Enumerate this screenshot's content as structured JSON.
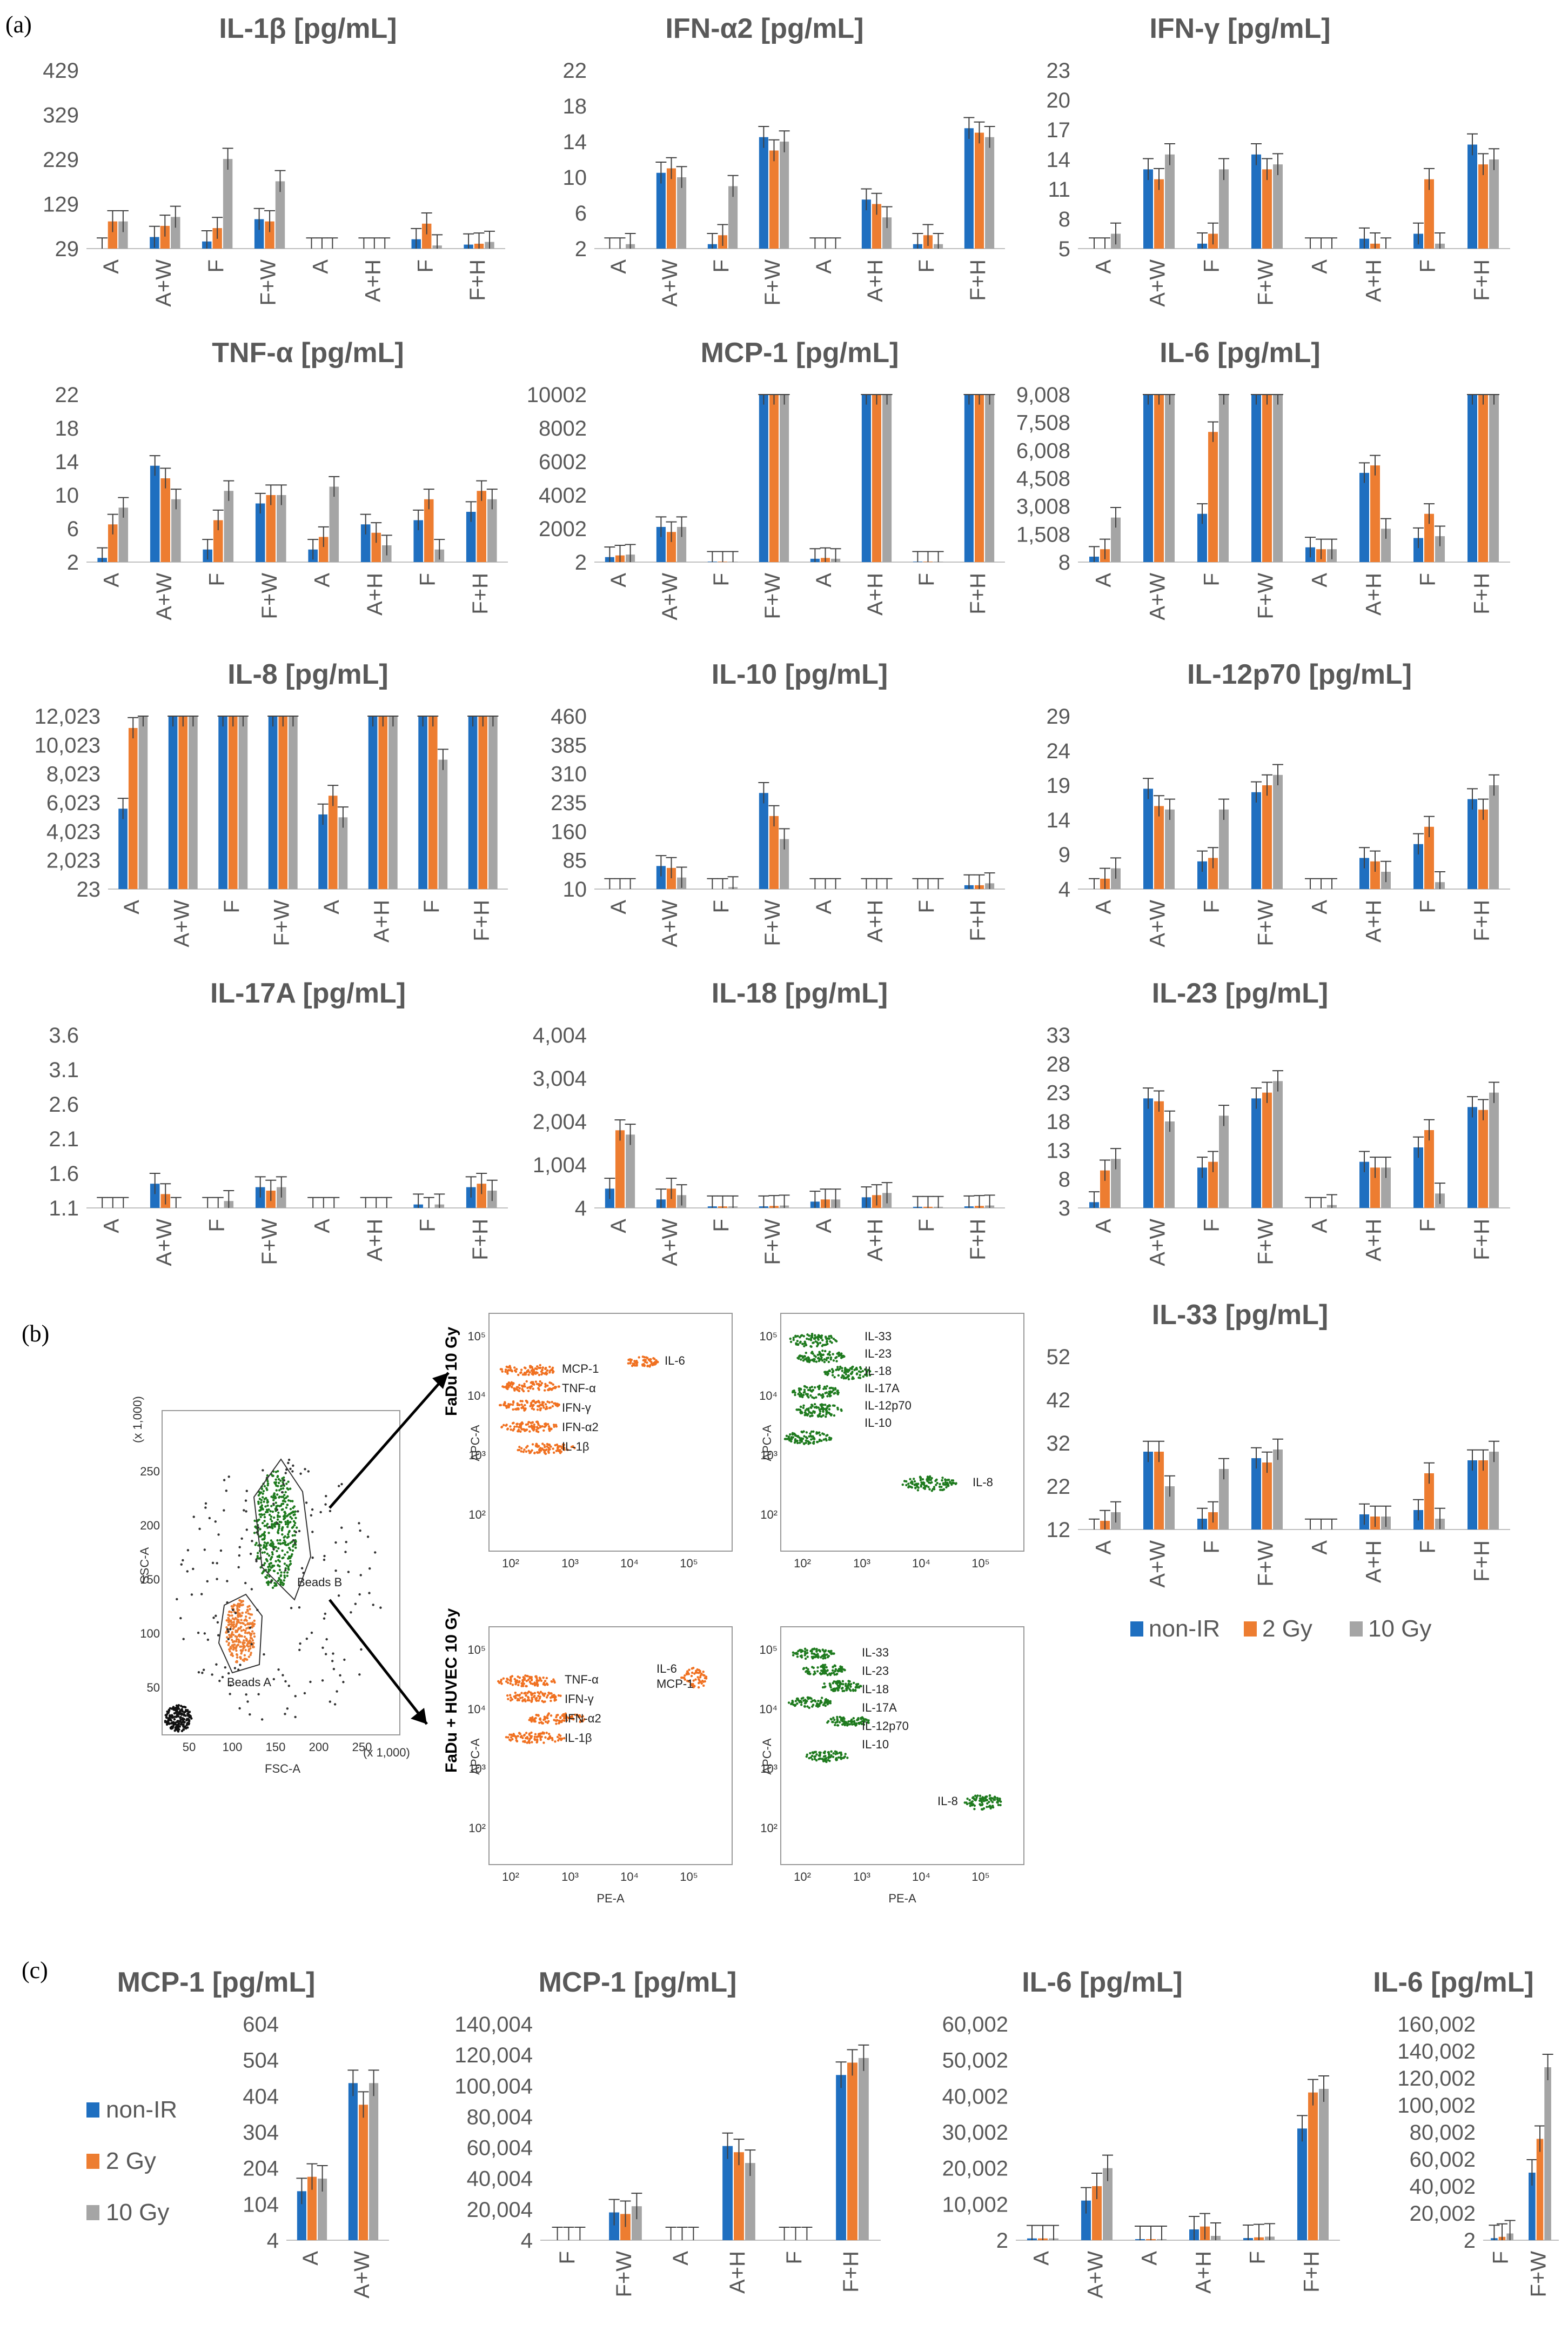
{
  "panels": {
    "a": "(a)",
    "b": "(b)",
    "c": "(c)"
  },
  "colors": {
    "non_ir": "#1f6fc0",
    "gy2": "#ed7d31",
    "gy10": "#a5a5a5"
  },
  "legend": {
    "items": [
      "non-IR",
      "2 Gy",
      "10 Gy"
    ]
  },
  "chart_data": [
    {
      "id": "il1b",
      "type": "bar",
      "title": "IL-1β [pg/mL]",
      "yticks": [
        "29",
        "129",
        "229",
        "329",
        "429"
      ],
      "ylim": [
        29,
        429
      ],
      "categories": [
        "A",
        "A+W",
        "F",
        "F+W",
        "A",
        "A+H",
        "F",
        "F+H"
      ],
      "series": [
        {
          "name": "non-IR",
          "values": [
            29,
            55,
            45,
            95,
            29,
            29,
            50,
            38
          ]
        },
        {
          "name": "2 Gy",
          "values": [
            90,
            80,
            75,
            90,
            29,
            29,
            85,
            40
          ]
        },
        {
          "name": "10 Gy",
          "values": [
            90,
            100,
            230,
            180,
            29,
            29,
            36,
            44
          ]
        }
      ]
    },
    {
      "id": "ifna2",
      "type": "bar",
      "title": "IFN-α2 [pg/mL]",
      "yticks": [
        "2",
        "6",
        "10",
        "14",
        "18",
        "22"
      ],
      "ylim": [
        2,
        22
      ],
      "categories": [
        "A",
        "A+W",
        "F",
        "F+W",
        "A",
        "A+H",
        "F",
        "F+H"
      ],
      "series": [
        {
          "name": "non-IR",
          "values": [
            2,
            10.5,
            2.5,
            14.5,
            2,
            7.5,
            2.5,
            15.5
          ]
        },
        {
          "name": "2 Gy",
          "values": [
            2,
            11,
            3.5,
            13,
            2,
            7,
            3.5,
            15
          ]
        },
        {
          "name": "10 Gy",
          "values": [
            2.5,
            10,
            9,
            14,
            2,
            5.5,
            2.5,
            14.5
          ]
        }
      ]
    },
    {
      "id": "ifng",
      "type": "bar",
      "title": "IFN-γ [pg/mL]",
      "yticks": [
        "5",
        "8",
        "11",
        "14",
        "17",
        "20",
        "23"
      ],
      "ylim": [
        5,
        23
      ],
      "categories": [
        "A",
        "A+W",
        "F",
        "F+W",
        "A",
        "A+H",
        "F",
        "F+H"
      ],
      "series": [
        {
          "name": "non-IR",
          "values": [
            5,
            13,
            5.5,
            14.5,
            5,
            6,
            6.5,
            15.5
          ]
        },
        {
          "name": "2 Gy",
          "values": [
            5,
            12,
            6.5,
            13,
            5,
            5.5,
            12,
            13.5
          ]
        },
        {
          "name": "10 Gy",
          "values": [
            6.5,
            14.5,
            13,
            13.5,
            5,
            5,
            5.5,
            14
          ]
        }
      ]
    },
    {
      "id": "tnfa",
      "type": "bar",
      "title": "TNF-α [pg/mL]",
      "yticks": [
        "2",
        "6",
        "10",
        "14",
        "18",
        "22"
      ],
      "ylim": [
        2,
        22
      ],
      "categories": [
        "A",
        "A+W",
        "F",
        "F+W",
        "A",
        "A+H",
        "F",
        "F+H"
      ],
      "series": [
        {
          "name": "non-IR",
          "values": [
            2.5,
            13.5,
            3.5,
            9,
            3.5,
            6.5,
            7,
            8
          ]
        },
        {
          "name": "2 Gy",
          "values": [
            6.5,
            12,
            7,
            10,
            5,
            5.5,
            9.5,
            10.5
          ]
        },
        {
          "name": "10 Gy",
          "values": [
            8.5,
            9.5,
            10.5,
            10,
            11,
            4,
            3.5,
            9.5
          ]
        }
      ]
    },
    {
      "id": "mcp1",
      "type": "bar",
      "title": "MCP-1 [pg/mL]",
      "yticks": [
        "2",
        "2002",
        "4002",
        "6002",
        "8002",
        "10002"
      ],
      "ylim": [
        2,
        10002
      ],
      "categories": [
        "A",
        "A+W",
        "F",
        "F+W",
        "A",
        "A+H",
        "F",
        "F+H"
      ],
      "series": [
        {
          "name": "non-IR",
          "values": [
            300,
            2100,
            30,
            10002,
            200,
            10002,
            30,
            10002
          ]
        },
        {
          "name": "2 Gy",
          "values": [
            400,
            1800,
            30,
            10002,
            250,
            10002,
            30,
            10002
          ]
        },
        {
          "name": "10 Gy",
          "values": [
            450,
            2100,
            30,
            10002,
            200,
            10002,
            30,
            10002
          ]
        }
      ]
    },
    {
      "id": "il6",
      "type": "bar",
      "title": "IL-6 [pg/mL]",
      "yticks": [
        "8",
        "1,508",
        "3,008",
        "4,508",
        "6,008",
        "7,508",
        "9,008"
      ],
      "ylim": [
        8,
        9008
      ],
      "categories": [
        "A",
        "A+W",
        "F",
        "F+W",
        "A",
        "A+H",
        "F",
        "F+H"
      ],
      "series": [
        {
          "name": "non-IR",
          "values": [
            300,
            9008,
            2600,
            9008,
            800,
            4800,
            1300,
            9008
          ]
        },
        {
          "name": "2 Gy",
          "values": [
            700,
            9008,
            7000,
            9008,
            700,
            5200,
            2600,
            9008
          ]
        },
        {
          "name": "10 Gy",
          "values": [
            2400,
            9008,
            9008,
            9008,
            700,
            1800,
            1400,
            9008
          ]
        }
      ]
    },
    {
      "id": "il8",
      "type": "bar",
      "title": "IL-8 [pg/mL]",
      "yticks": [
        "23",
        "2,023",
        "4,023",
        "6,023",
        "8,023",
        "10,023",
        "12,023"
      ],
      "ylim": [
        23,
        12023
      ],
      "categories": [
        "A",
        "A+W",
        "F",
        "F+W",
        "A",
        "A+H",
        "F",
        "F+H"
      ],
      "series": [
        {
          "name": "non-IR",
          "values": [
            5600,
            12023,
            12023,
            12023,
            5200,
            12023,
            12023,
            12023
          ]
        },
        {
          "name": "2 Gy",
          "values": [
            11200,
            12023,
            12023,
            12023,
            6500,
            12023,
            12023,
            12023
          ]
        },
        {
          "name": "10 Gy",
          "values": [
            12023,
            12023,
            12023,
            12023,
            5000,
            12023,
            9000,
            12023
          ]
        }
      ]
    },
    {
      "id": "il10",
      "type": "bar",
      "title": "IL-10 [pg/mL]",
      "yticks": [
        "10",
        "85",
        "160",
        "235",
        "310",
        "385",
        "460"
      ],
      "ylim": [
        10,
        460
      ],
      "categories": [
        "A",
        "A+W",
        "F",
        "F+W",
        "A",
        "A+H",
        "F",
        "F+H"
      ],
      "series": [
        {
          "name": "non-IR",
          "values": [
            10,
            70,
            10,
            260,
            10,
            10,
            10,
            20
          ]
        },
        {
          "name": "2 Gy",
          "values": [
            10,
            65,
            10,
            200,
            10,
            10,
            10,
            20
          ]
        },
        {
          "name": "10 Gy",
          "values": [
            10,
            40,
            15,
            140,
            10,
            10,
            10,
            25
          ]
        }
      ]
    },
    {
      "id": "il12p70",
      "type": "bar",
      "title": "IL-12p70 [pg/mL]",
      "yticks": [
        "4",
        "9",
        "14",
        "19",
        "24",
        "29"
      ],
      "ylim": [
        4,
        29
      ],
      "categories": [
        "A",
        "A+W",
        "F",
        "F+W",
        "A",
        "A+H",
        "F",
        "F+H"
      ],
      "series": [
        {
          "name": "non-IR",
          "values": [
            4,
            18.5,
            8,
            18,
            4,
            8.5,
            10.5,
            17
          ]
        },
        {
          "name": "2 Gy",
          "values": [
            5.5,
            16,
            8.5,
            19,
            4,
            8,
            13,
            15.5
          ]
        },
        {
          "name": "10 Gy",
          "values": [
            7,
            15.5,
            15.5,
            20.5,
            4,
            6.5,
            5,
            19
          ]
        }
      ]
    },
    {
      "id": "il17a",
      "type": "bar",
      "title": "IL-17A [pg/mL]",
      "yticks": [
        "1.1",
        "1.6",
        "2.1",
        "2.6",
        "3.1",
        "3.6"
      ],
      "ylim": [
        1.1,
        3.6
      ],
      "categories": [
        "A",
        "A+W",
        "F",
        "F+W",
        "A",
        "A+H",
        "F",
        "F+H"
      ],
      "series": [
        {
          "name": "non-IR",
          "values": [
            1.1,
            1.45,
            1.1,
            1.4,
            1.1,
            1.1,
            1.15,
            1.4
          ]
        },
        {
          "name": "2 Gy",
          "values": [
            1.1,
            1.3,
            1.1,
            1.35,
            1.1,
            1.1,
            1.1,
            1.45
          ]
        },
        {
          "name": "10 Gy",
          "values": [
            1.1,
            1.1,
            1.2,
            1.4,
            1.1,
            1.1,
            1.15,
            1.35
          ]
        }
      ]
    },
    {
      "id": "il18",
      "type": "bar",
      "title": "IL-18 [pg/mL]",
      "yticks": [
        "4",
        "1,004",
        "2,004",
        "3,004",
        "4,004"
      ],
      "ylim": [
        4,
        4004
      ],
      "categories": [
        "A",
        "A+W",
        "F",
        "F+W",
        "A",
        "A+H",
        "F",
        "F+H"
      ],
      "series": [
        {
          "name": "non-IR",
          "values": [
            450,
            200,
            40,
            40,
            150,
            250,
            30,
            40
          ]
        },
        {
          "name": "2 Gy",
          "values": [
            1800,
            450,
            40,
            50,
            200,
            300,
            30,
            50
          ]
        },
        {
          "name": "10 Gy",
          "values": [
            1700,
            300,
            40,
            60,
            200,
            350,
            30,
            60
          ]
        }
      ]
    },
    {
      "id": "il23",
      "type": "bar",
      "title": "IL-23 [pg/mL]",
      "yticks": [
        "3",
        "8",
        "13",
        "18",
        "23",
        "28",
        "33"
      ],
      "ylim": [
        3,
        33
      ],
      "categories": [
        "A",
        "A+W",
        "F",
        "F+W",
        "A",
        "A+H",
        "F",
        "F+H"
      ],
      "series": [
        {
          "name": "non-IR",
          "values": [
            4,
            22,
            10,
            22,
            3,
            11,
            13.5,
            20.5
          ]
        },
        {
          "name": "2 Gy",
          "values": [
            9.5,
            21.5,
            11,
            23,
            3,
            10,
            16.5,
            20
          ]
        },
        {
          "name": "10 Gy",
          "values": [
            11.5,
            18,
            19,
            25,
            3.5,
            10,
            5.5,
            23
          ]
        }
      ]
    },
    {
      "id": "il33",
      "type": "bar",
      "title": "IL-33 [pg/mL]",
      "yticks": [
        "12",
        "22",
        "32",
        "42",
        "52"
      ],
      "ylim": [
        12,
        52
      ],
      "categories": [
        "A",
        "A+W",
        "F",
        "F+W",
        "A",
        "A+H",
        "F",
        "F+H"
      ],
      "series": [
        {
          "name": "non-IR",
          "values": [
            12,
            30,
            14.5,
            28.5,
            12,
            15.5,
            16.5,
            28
          ]
        },
        {
          "name": "2 Gy",
          "values": [
            14,
            30,
            16,
            27.5,
            12,
            15,
            25,
            28
          ]
        },
        {
          "name": "10 Gy",
          "values": [
            16,
            22,
            26,
            30.5,
            12,
            15,
            14.5,
            30
          ]
        }
      ]
    },
    {
      "id": "c_mcp1a",
      "type": "bar",
      "title": "MCP-1 [pg/mL]",
      "yticks": [
        "4",
        "104",
        "204",
        "304",
        "404",
        "504",
        "604"
      ],
      "ylim": [
        4,
        604
      ],
      "categories": [
        "A",
        "A+W"
      ],
      "series": [
        {
          "name": "non-IR",
          "values": [
            140,
            440
          ]
        },
        {
          "name": "2 Gy",
          "values": [
            180,
            380
          ]
        },
        {
          "name": "10 Gy",
          "values": [
            175,
            440
          ]
        }
      ]
    },
    {
      "id": "c_mcp1b",
      "type": "bar",
      "title": "MCP-1 [pg/mL]",
      "yticks": [
        "4",
        "20,004",
        "40,004",
        "60,004",
        "80,004",
        "100,004",
        "120,004",
        "140,004"
      ],
      "ylim": [
        4,
        140004
      ],
      "categories": [
        "F",
        "F+W",
        "A",
        "A+H",
        "F",
        "F+H"
      ],
      "series": [
        {
          "name": "non-IR",
          "values": [
            4,
            18000,
            4,
            61000,
            4,
            107000
          ]
        },
        {
          "name": "2 Gy",
          "values": [
            4,
            17000,
            4,
            57000,
            4,
            115000
          ]
        },
        {
          "name": "10 Gy",
          "values": [
            4,
            22000,
            4,
            50000,
            4,
            118000
          ]
        }
      ]
    },
    {
      "id": "c_il6a",
      "type": "bar",
      "title": "IL-6 [pg/mL]",
      "yticks": [
        "2",
        "10,002",
        "20,002",
        "30,002",
        "40,002",
        "50,002",
        "60,002"
      ],
      "ylim": [
        2,
        60002
      ],
      "categories": [
        "A",
        "A+W",
        "A",
        "A+H",
        "F",
        "F+H"
      ],
      "series": [
        {
          "name": "non-IR",
          "values": [
            500,
            11000,
            300,
            3000,
            600,
            31000
          ]
        },
        {
          "name": "2 Gy",
          "values": [
            500,
            15000,
            300,
            3800,
            800,
            41000
          ]
        },
        {
          "name": "10 Gy",
          "values": [
            500,
            20000,
            300,
            1200,
            1000,
            42000
          ]
        }
      ]
    },
    {
      "id": "c_il6b",
      "type": "bar",
      "title": "IL-6 [pg/mL]",
      "yticks": [
        "2",
        "20,002",
        "40,002",
        "60,002",
        "80,002",
        "100,002",
        "120,002",
        "140,002",
        "160,002"
      ],
      "ylim": [
        2,
        160002
      ],
      "categories": [
        "F",
        "F+W"
      ],
      "series": [
        {
          "name": "non-IR",
          "values": [
            1500,
            50000
          ]
        },
        {
          "name": "2 Gy",
          "values": [
            2500,
            75000
          ]
        },
        {
          "name": "10 Gy",
          "values": [
            5000,
            128000
          ]
        }
      ]
    }
  ],
  "flow": {
    "main_x_axis": "FSC-A",
    "main_y_axis": "SSC-A",
    "beads_a": "Beads A",
    "beads_b": "Beads B",
    "scale_x": "(x 1,000)",
    "scale_y": "(x 1,000)",
    "main_x_ticks": [
      "50",
      "100",
      "150",
      "200",
      "250"
    ],
    "main_y_ticks": [
      "50",
      "100",
      "150",
      "200",
      "250"
    ],
    "row1_label": "FaDu  10 Gy",
    "row2_label": "FaDu + HUVEC  10 Gy",
    "apc_axis": "APC-A",
    "pe_axis": "PE-A",
    "orange_labels_1": [
      "MCP-1",
      "TNF-α",
      "IFN-γ",
      "IFN-α2",
      "IL-1β",
      "IL-6"
    ],
    "green_labels_1": [
      "IL-33",
      "IL-23",
      "IL-18",
      "IL-17A",
      "IL-12p70",
      "IL-10",
      "IL-8"
    ],
    "orange_labels_2": [
      "TNF-α",
      "IFN-γ",
      "IFN-α2",
      "IL-1β",
      "IL-6",
      "MCP-1"
    ],
    "green_labels_2": [
      "IL-33",
      "IL-23",
      "IL-18",
      "IL-17A",
      "IL-12p70",
      "IL-10",
      "IL-8"
    ],
    "log_ticks": [
      "10²",
      "10³",
      "10⁴",
      "10⁵"
    ]
  }
}
